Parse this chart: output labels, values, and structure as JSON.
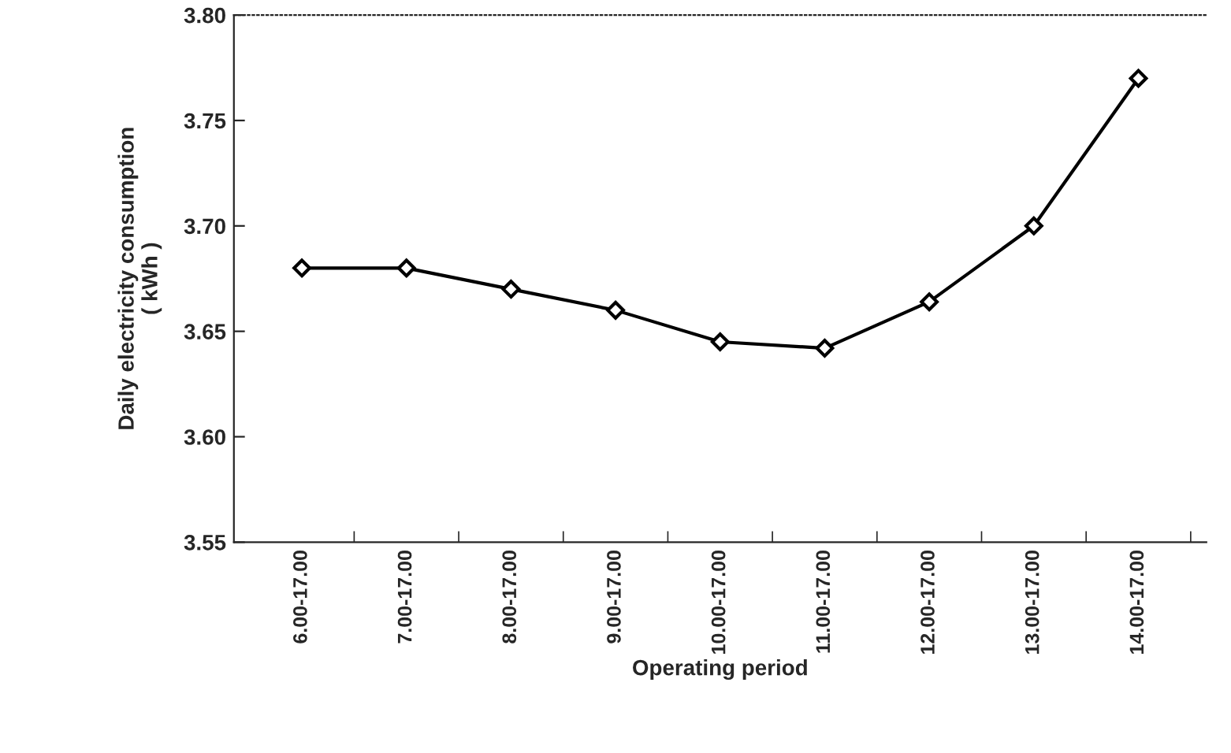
{
  "chart_data": {
    "type": "line",
    "xlabel": "Operating period",
    "ylabel": "Daily electricity consumption\n( kWh )",
    "categories": [
      "6.00-17.00",
      "7.00-17.00",
      "8.00-17.00",
      "9.00-17.00",
      "10.00-17.00",
      "11.00-17.00",
      "12.00-17.00",
      "13.00-17.00",
      "14.00-17.00"
    ],
    "series": [
      {
        "color": "#000000",
        "values": [
          3.68,
          3.68,
          3.67,
          3.66,
          3.645,
          3.642,
          3.664,
          3.7,
          3.77
        ]
      }
    ],
    "ylim": [
      3.55,
      3.8
    ],
    "yticks": [
      {
        "value": 3.55,
        "label": "3.55"
      },
      {
        "value": 3.6,
        "label": "3.60"
      },
      {
        "value": 3.65,
        "label": "3.65"
      },
      {
        "value": 3.7,
        "label": "3.70"
      },
      {
        "value": 3.75,
        "label": "3.75"
      },
      {
        "value": 3.8,
        "label": "3.80"
      }
    ],
    "marker": "diamond",
    "line_style": "solid",
    "grid": false,
    "legend": false
  }
}
